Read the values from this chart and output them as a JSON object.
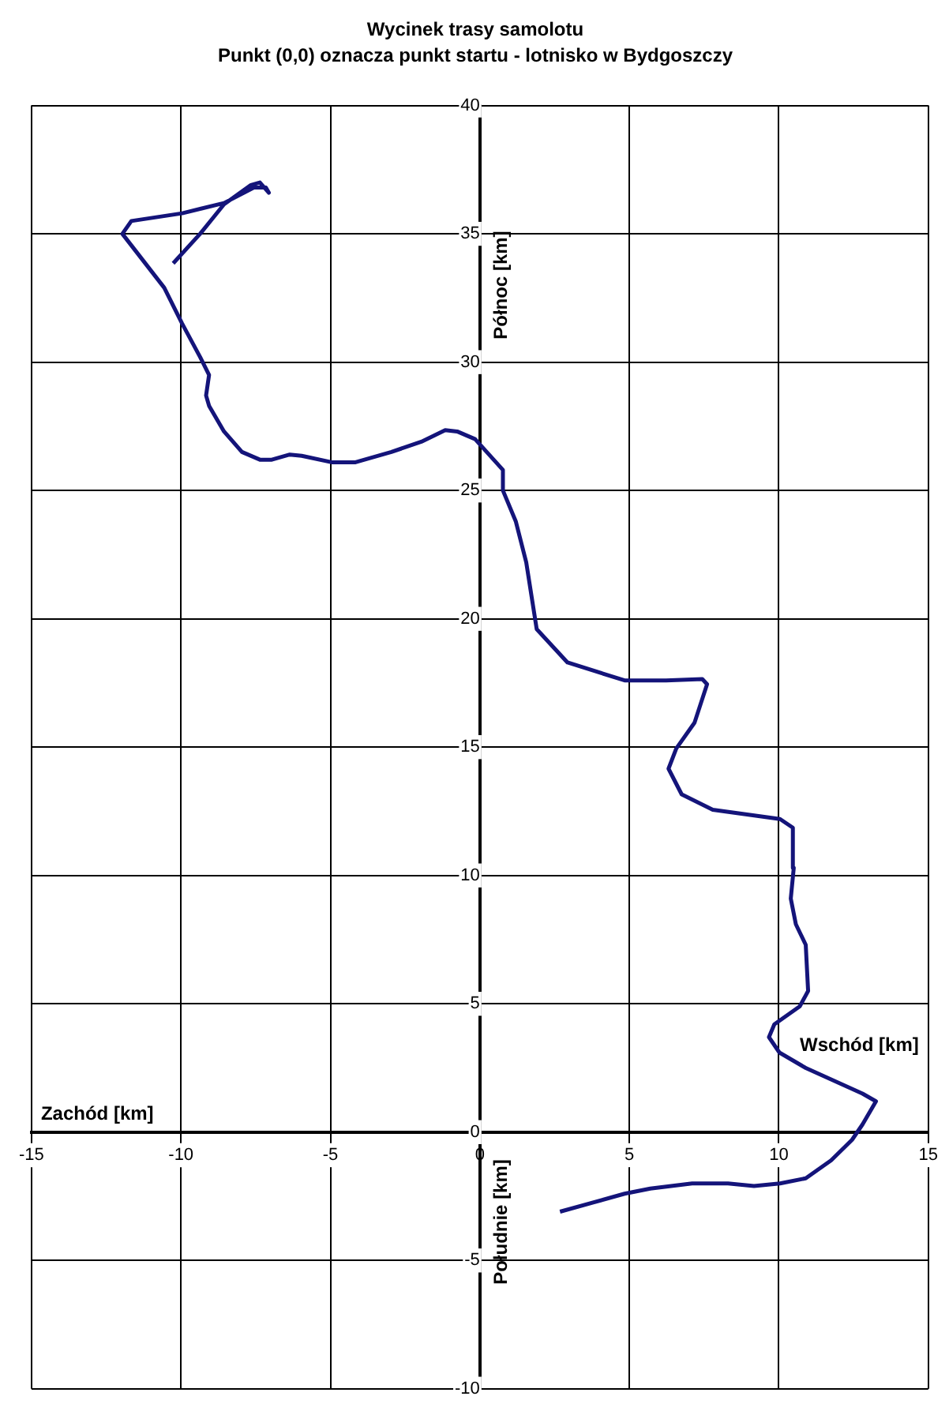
{
  "chart_data": {
    "type": "line",
    "title": "Wycinek trasy samolotu",
    "subtitle": "Punkt (0,0) oznacza punkt startu - lotnisko w Bydgoszczy",
    "annotations": [
      "Zachód [km]",
      "Wschód [km]",
      "Północ [km]",
      "Południe [km]"
    ],
    "series": [
      {
        "color": "#14147a",
        "x": [
          2.68,
          4.84,
          5.7,
          7.1,
          8.3,
          9.17,
          10.04,
          10.9,
          11.75,
          12.45,
          12.8,
          13.25,
          12.8,
          10.9,
          10.02,
          9.67,
          9.85,
          10.7,
          10.98,
          10.9,
          10.57,
          10.4,
          10.5,
          10.47,
          10.04,
          7.79,
          6.75,
          6.31,
          6.57,
          7.18,
          7.6,
          7.44,
          6.23,
          4.84,
          2.93,
          1.9,
          1.55,
          1.2,
          0.77,
          0.77,
          -0.16,
          -0.76,
          -1.16,
          -1.96,
          -2.96,
          -4.16,
          -4.96,
          -5.96,
          -6.36,
          -6.96,
          -7.36,
          -7.96,
          -8.56,
          -9.06,
          -9.16,
          -9.06,
          -9.36,
          -9.96,
          -10.56,
          -11.96,
          -11.66,
          -9.96,
          -8.56,
          -7.56,
          -7.16,
          -7.06,
          -7.36,
          -7.66,
          -8.56,
          -9.36,
          -10.26
        ],
        "values": [
          -3.1,
          -2.4,
          -2.2,
          -2.0,
          -2.0,
          -2.1,
          -2.0,
          -1.8,
          -1.1,
          -0.3,
          0.3,
          1.2,
          1.5,
          2.5,
          3.1,
          3.7,
          4.2,
          4.9,
          5.5,
          7.3,
          8.1,
          9.1,
          10.3,
          11.86,
          12.2,
          12.56,
          13.16,
          14.16,
          14.95,
          15.95,
          17.45,
          17.65,
          17.6,
          17.6,
          18.3,
          19.6,
          22.2,
          23.8,
          25.0,
          25.8,
          27.0,
          27.3,
          27.35,
          26.9,
          26.5,
          26.1,
          26.1,
          26.35,
          26.4,
          26.2,
          26.2,
          26.5,
          27.3,
          28.3,
          28.7,
          29.5,
          30.2,
          31.5,
          32.9,
          35.0,
          35.5,
          35.8,
          36.2,
          36.8,
          36.8,
          36.6,
          37.0,
          36.9,
          36.15,
          35.0,
          33.85
        ]
      }
    ],
    "xlim": [
      -15,
      15
    ],
    "xticks": [
      -15,
      -10,
      -5,
      0,
      5,
      10,
      15
    ],
    "ylim": [
      -10,
      40
    ],
    "yticks": [
      -10,
      -5,
      0,
      5,
      10,
      15,
      20,
      25,
      30,
      35,
      40
    ],
    "grid": true,
    "legend": false,
    "marker": "none",
    "line_style": "solid"
  }
}
